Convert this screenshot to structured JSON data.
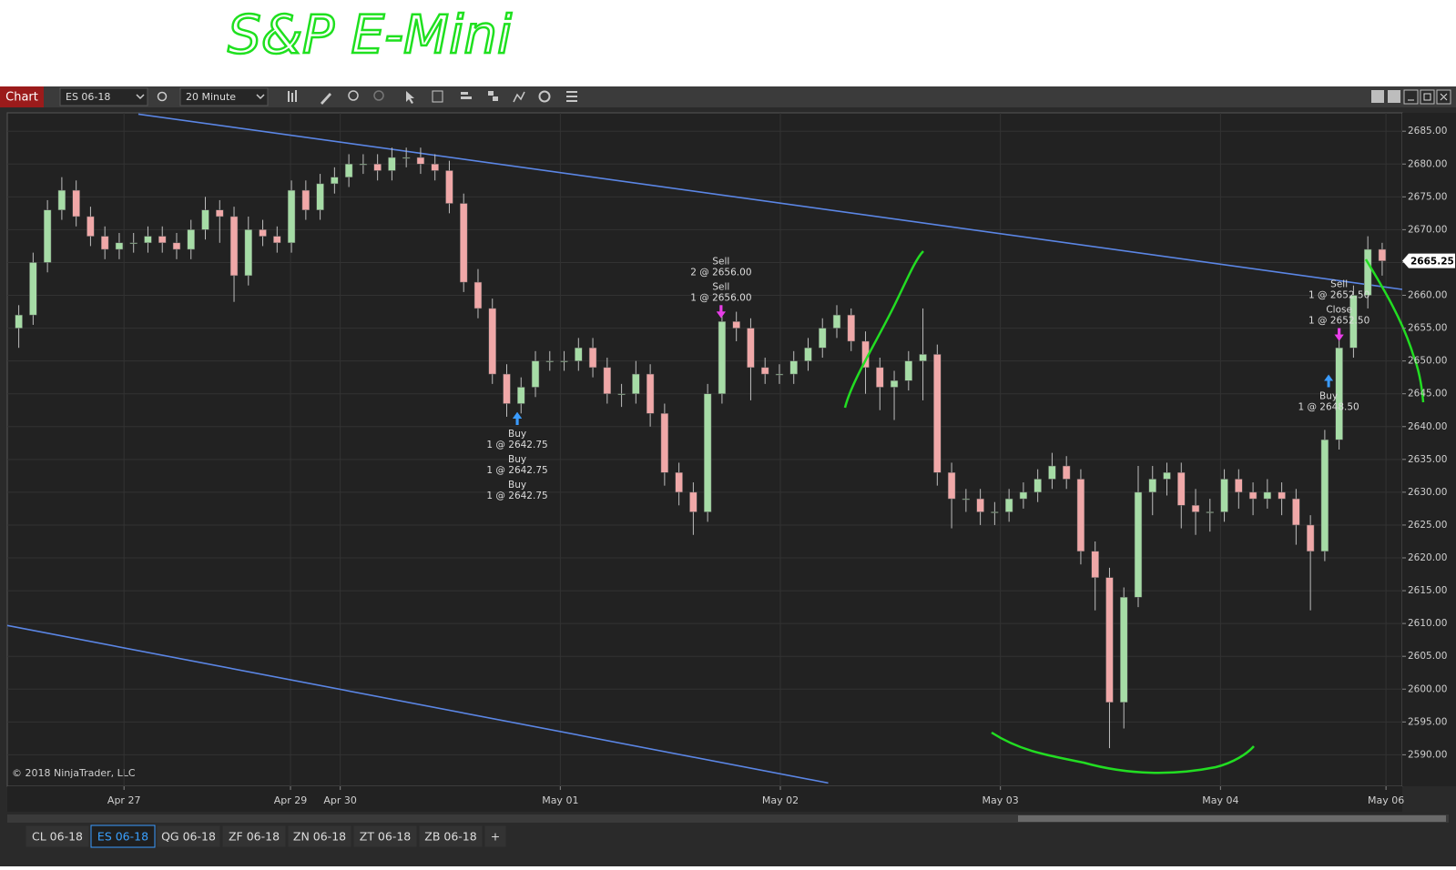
{
  "handwritten_title": "S&P E-Mini",
  "toolbar": {
    "chart_button": "Chart",
    "instrument": "ES 06-18",
    "interval": "20 Minute"
  },
  "tabs": [
    "CL 06-18",
    "ES 06-18",
    "QG 06-18",
    "ZF 06-18",
    "ZN 06-18",
    "ZT 06-18",
    "ZB 06-18",
    "+"
  ],
  "active_tab": 1,
  "chart_data": {
    "type": "candlestick",
    "copyright": "© 2018 NinjaTrader, LLC",
    "up_color": "#a6dca6",
    "down_color": "#f0a8a8",
    "wick_color": "#bdbdbd",
    "grid": true,
    "xlim": [
      -12.2,
      133.6
    ],
    "ylim": [
      2585.2,
      2687.8
    ],
    "xticks": [
      {
        "value": 0,
        "label": "Apr 27"
      },
      {
        "value": 17.4,
        "label": "Apr 29"
      },
      {
        "value": 22.6,
        "label": "Apr 30"
      },
      {
        "value": 45.6,
        "label": "May 01"
      },
      {
        "value": 68.6,
        "label": "May 02"
      },
      {
        "value": 91.6,
        "label": "May 03"
      },
      {
        "value": 114.6,
        "label": "May 04"
      },
      {
        "value": 131.9,
        "label": "May 06"
      }
    ],
    "yticks": [
      {
        "value": 2590,
        "label": "2590.00"
      },
      {
        "value": 2595,
        "label": "2595.00"
      },
      {
        "value": 2600,
        "label": "2600.00"
      },
      {
        "value": 2605,
        "label": "2605.00"
      },
      {
        "value": 2610,
        "label": "2610.00"
      },
      {
        "value": 2615,
        "label": "2615.00"
      },
      {
        "value": 2620,
        "label": "2620.00"
      },
      {
        "value": 2625,
        "label": "2625.00"
      },
      {
        "value": 2630,
        "label": "2630.00"
      },
      {
        "value": 2635,
        "label": "2635.00"
      },
      {
        "value": 2640,
        "label": "2640.00"
      },
      {
        "value": 2645,
        "label": "2645.00"
      },
      {
        "value": 2650,
        "label": "2650.00"
      },
      {
        "value": 2655,
        "label": "2655.00"
      },
      {
        "value": 2660,
        "label": "2660.00"
      },
      {
        "value": 2665,
        "label": "2665.00"
      },
      {
        "value": 2670,
        "label": "2670.00"
      },
      {
        "value": 2675,
        "label": "2675.00"
      },
      {
        "value": 2680,
        "label": "2680.00"
      },
      {
        "value": 2685,
        "label": "2685.00"
      }
    ],
    "last_price": 2665.25,
    "x": [
      -11,
      -9.5,
      -8,
      -6.5,
      -5,
      -3.5,
      -2,
      -0.5,
      1,
      2.5,
      4,
      5.5,
      7,
      8.5,
      10,
      11.5,
      13,
      14.5,
      16,
      17.5,
      19,
      20.5,
      22,
      23.5,
      25,
      26.5,
      28,
      29.5,
      31,
      32.5,
      34,
      35.5,
      37,
      38.5,
      40,
      41.5,
      43,
      44.5,
      46,
      47.5,
      49,
      50.5,
      52,
      53.5,
      55,
      56.5,
      58,
      59.5,
      61,
      62.5,
      64,
      65.5,
      67,
      68.5,
      70,
      71.5,
      73,
      74.5,
      76,
      77.5,
      79,
      80.5,
      82,
      83.5,
      85,
      86.5,
      88,
      89.5,
      91,
      92.5,
      94,
      95.5,
      97,
      98.5,
      100,
      101.5,
      103,
      104.5,
      106,
      107.5,
      109,
      110.5,
      112,
      113.5,
      115,
      116.5,
      118,
      119.5,
      121,
      122.5,
      124,
      125.5,
      127,
      128.5,
      130,
      131.5
    ],
    "open": [
      2655,
      2657,
      2665,
      2673,
      2676,
      2672,
      2669,
      2667,
      2668,
      2668,
      2669,
      2668,
      2667,
      2670,
      2673,
      2672,
      2663,
      2670,
      2669,
      2668,
      2676,
      2673,
      2677,
      2678,
      2680,
      2680,
      2679,
      2681,
      2681,
      2680,
      2679,
      2674,
      2662,
      2658,
      2648,
      2643.5,
      2646,
      2650,
      2650,
      2650,
      2652,
      2649,
      2645,
      2645,
      2648,
      2642,
      2633,
      2630,
      2627,
      2645,
      2656,
      2655,
      2649,
      2648,
      2648,
      2650,
      2652,
      2655,
      2657,
      2653,
      2649,
      2646,
      2647,
      2650,
      2651,
      2633,
      2629,
      2629,
      2627,
      2627,
      2629,
      2630,
      2632,
      2634,
      2632,
      2621,
      2617,
      2598,
      2614,
      2630,
      2632,
      2633,
      2628,
      2627,
      2627,
      2632,
      2630,
      2629,
      2630,
      2629,
      2625,
      2621,
      2638,
      2652,
      2660,
      2667
    ],
    "high": [
      2658.5,
      2666.5,
      2674.5,
      2678,
      2677.5,
      2673.5,
      2670.5,
      2669.5,
      2669.5,
      2670.5,
      2670.5,
      2669.5,
      2671.5,
      2675,
      2674.5,
      2673.5,
      2672,
      2671.5,
      2670.5,
      2677.5,
      2677.5,
      2678.5,
      2679.5,
      2681.5,
      2681.5,
      2681.5,
      2682.5,
      2682.5,
      2682.5,
      2681.5,
      2680.5,
      2675.5,
      2664,
      2659.5,
      2649.5,
      2647.5,
      2651.5,
      2651.5,
      2651.5,
      2653.5,
      2653.5,
      2650.5,
      2646.5,
      2650,
      2649.5,
      2643.5,
      2634.5,
      2631.5,
      2646.5,
      2657.5,
      2657.5,
      2656.5,
      2650.5,
      2649.5,
      2651.5,
      2653.5,
      2656.5,
      2658.5,
      2658,
      2654.5,
      2650.5,
      2648.5,
      2651.5,
      2658,
      2652.5,
      2634.5,
      2630.5,
      2630.5,
      2628.5,
      2630.5,
      2631.5,
      2633.5,
      2636,
      2635.5,
      2633.5,
      2622.5,
      2618.5,
      2615.5,
      2634,
      2634,
      2634.5,
      2634.5,
      2630.5,
      2629,
      2633.5,
      2633.5,
      2631.5,
      2632,
      2631.5,
      2630.5,
      2626.5,
      2639.5,
      2653.5,
      2661.5,
      2669,
      2668
    ],
    "low": [
      2652,
      2655.5,
      2663.5,
      2671.5,
      2670.5,
      2667.5,
      2665.5,
      2665.5,
      2666.5,
      2666.5,
      2666.5,
      2665.5,
      2665.5,
      2668.5,
      2668,
      2659,
      2661.5,
      2667.5,
      2666.5,
      2666.5,
      2671.5,
      2671.5,
      2675.5,
      2676.5,
      2678.5,
      2677.5,
      2677.5,
      2679.5,
      2678.5,
      2677.5,
      2672.5,
      2660.5,
      2656.5,
      2646.5,
      2641.5,
      2642,
      2644.5,
      2648.5,
      2648.5,
      2648.5,
      2647.5,
      2643.5,
      2643,
      2643.5,
      2640,
      2631,
      2628,
      2623.5,
      2625.5,
      2643.5,
      2653,
      2644,
      2646.5,
      2646.5,
      2646.5,
      2648.5,
      2650.5,
      2653.5,
      2651.5,
      2645,
      2642.5,
      2641,
      2645.5,
      2644,
      2631,
      2624.5,
      2627,
      2625,
      2625,
      2625.5,
      2627.5,
      2628.5,
      2630.5,
      2630.5,
      2619,
      2612,
      2591,
      2594,
      2612.5,
      2626.5,
      2629.5,
      2624.5,
      2623.5,
      2624,
      2625.5,
      2627.5,
      2626.5,
      2627.5,
      2626.5,
      2622,
      2612,
      2619.5,
      2636.5,
      2650.5,
      2658,
      2663
    ],
    "close": [
      2657,
      2665,
      2673,
      2676,
      2672,
      2669,
      2667,
      2668,
      2668,
      2669,
      2668,
      2667,
      2670,
      2673,
      2672,
      2663,
      2670,
      2669,
      2668,
      2676,
      2673,
      2677,
      2678,
      2680,
      2680,
      2679,
      2681,
      2681,
      2680,
      2679,
      2674,
      2662,
      2658,
      2648,
      2643.5,
      2646,
      2650,
      2650,
      2650,
      2652,
      2649,
      2645,
      2645,
      2648,
      2642,
      2633,
      2630,
      2627,
      2645,
      2656,
      2655,
      2649,
      2648,
      2648,
      2650,
      2652,
      2655,
      2657,
      2653,
      2649,
      2646,
      2647,
      2650,
      2651,
      2633,
      2629,
      2629,
      2627,
      2627,
      2629,
      2630,
      2632,
      2634,
      2632,
      2621,
      2617,
      2598,
      2614,
      2630,
      2632,
      2633,
      2628,
      2627,
      2627,
      2632,
      2630,
      2629,
      2630,
      2629,
      2625,
      2621,
      2638,
      2652,
      2660,
      2667,
      2665.25
    ],
    "trend_lines": [
      {
        "color": "#5b86e5",
        "x": [
          1.5,
          133.6
        ],
        "y": [
          2687.6,
          2660.9
        ]
      },
      {
        "color": "#5b86e5",
        "x": [
          -12.2,
          73.6
        ],
        "y": [
          2609.7,
          2585.7
        ]
      }
    ],
    "trades": [
      {
        "x": 62.4,
        "price": 2656,
        "marker": "down",
        "color": "#e83ee8",
        "lines": [
          "Sell",
          "2 @ 2656.00"
        ]
      },
      {
        "x": 62.4,
        "price": 2656,
        "marker": "down",
        "color": "#e83ee8",
        "lines": [
          "Sell",
          "1 @ 2656.00"
        ]
      },
      {
        "x": 41.1,
        "price": 2642.75,
        "marker": "up",
        "color": "#3a9bff",
        "lines": [
          "Buy",
          "1 @ 2642.75"
        ]
      },
      {
        "x": 41.1,
        "price": 2642.75,
        "marker": "up",
        "color": "#3a9bff",
        "lines": [
          "Buy",
          "1 @ 2642.75"
        ]
      },
      {
        "x": 41.1,
        "price": 2642.75,
        "marker": "up",
        "color": "#3a9bff",
        "lines": [
          "Buy",
          "1 @ 2642.75"
        ]
      },
      {
        "x": 127,
        "price": 2652.5,
        "marker": "down",
        "color": "#e83ee8",
        "lines": [
          "Sell",
          "1 @ 2652.50"
        ]
      },
      {
        "x": 127,
        "price": 2652.5,
        "marker": "down",
        "color": "#e83ee8",
        "lines": [
          "Close",
          "1 @ 2652.50"
        ]
      },
      {
        "x": 125.9,
        "price": 2648.5,
        "marker": "up",
        "color": "#3a9bff",
        "lines": [
          "Buy",
          "1 @ 2648.50"
        ]
      }
    ]
  }
}
